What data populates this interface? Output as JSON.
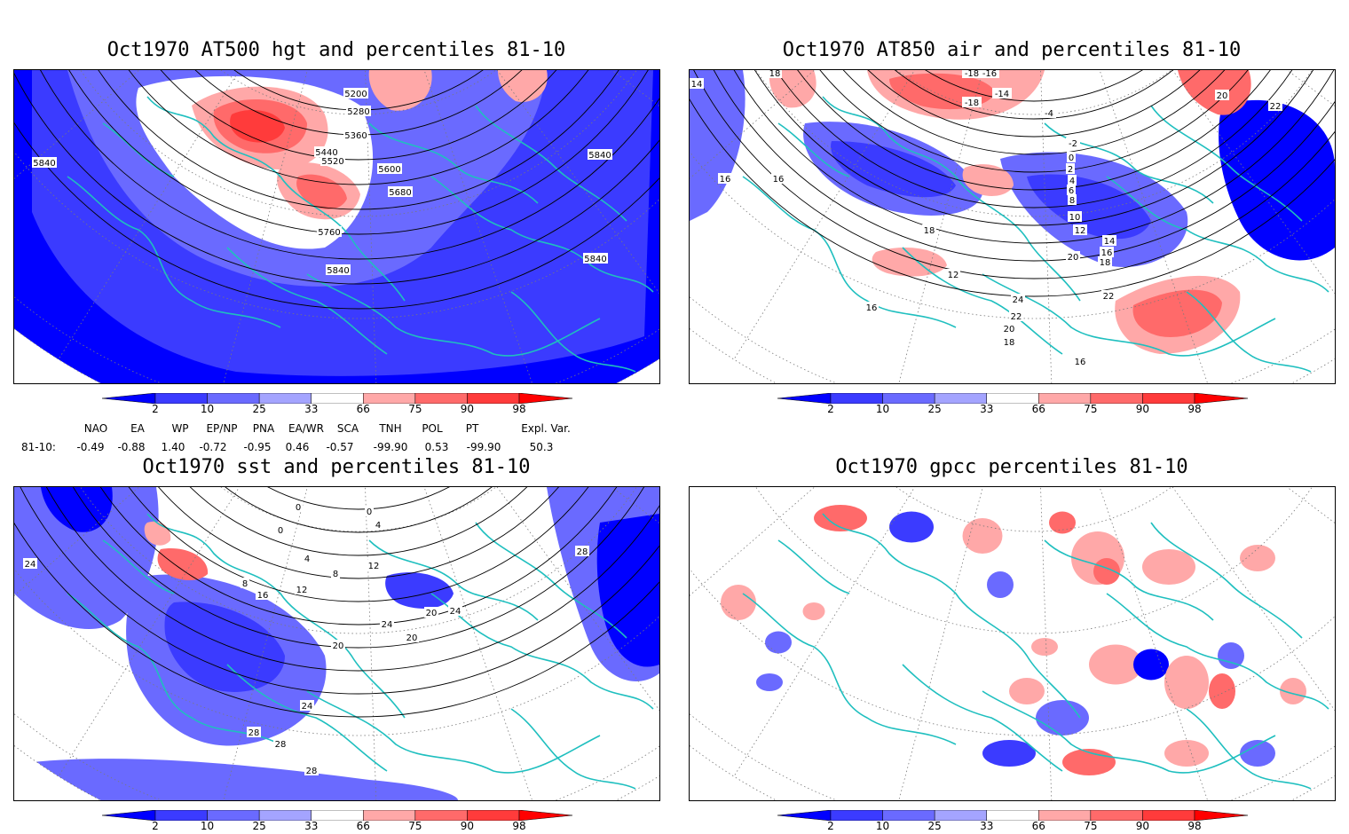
{
  "panels": [
    {
      "id": "hgt",
      "title": "Oct1970 AT500 hgt and percentiles 81-10",
      "contour_labels": [
        "5200",
        "5280",
        "5360",
        "5440",
        "5520",
        "5600",
        "5680",
        "5760",
        "5840",
        "5840",
        "5840",
        "5840"
      ]
    },
    {
      "id": "air",
      "title": "Oct1970 AT850 air and percentiles 81-10",
      "contour_labels": [
        "14",
        "18",
        "-18",
        "-16",
        "-14",
        "-18",
        "-4",
        "-2",
        "0",
        "2",
        "4",
        "6",
        "8",
        "10",
        "12",
        "14",
        "16",
        "18",
        "20",
        "20",
        "22",
        "16",
        "16",
        "18",
        "12",
        "16",
        "16",
        "24",
        "22",
        "20",
        "18",
        "16",
        "22"
      ]
    },
    {
      "id": "sst",
      "title": "Oct1970 sst and percentiles 81-10",
      "contour_labels": [
        "28",
        "24",
        "0",
        "0",
        "0",
        "4",
        "8",
        "4",
        "8",
        "12",
        "16",
        "20",
        "20",
        "24",
        "20",
        "24",
        "28",
        "24",
        "28",
        "28",
        "12"
      ]
    },
    {
      "id": "gpcc",
      "title": "Oct1970 gpcc percentiles 81-10",
      "contour_labels": []
    }
  ],
  "colorbar": {
    "ticks": [
      "2",
      "10",
      "25",
      "33",
      "66",
      "75",
      "90",
      "98"
    ],
    "colors": [
      "#0000ff",
      "#3b3bff",
      "#6a6aff",
      "#a4a4ff",
      "#ffffff",
      "#ffa8a8",
      "#ff6a6a",
      "#ff3b3b",
      "#ff0000"
    ]
  },
  "teleconnections": {
    "headers": [
      "NAO",
      "EA",
      "WP",
      "EP/NP",
      "PNA",
      "EA/WR",
      "SCA",
      "TNH",
      "POL",
      "PT",
      "Expl. Var."
    ],
    "row_label": "81-10:",
    "values": [
      "-0.49",
      "-0.88",
      "1.40",
      "-0.72",
      "-0.95",
      "0.46",
      "-0.57",
      "-99.90",
      "0.53",
      "-99.90",
      "50.3"
    ]
  }
}
